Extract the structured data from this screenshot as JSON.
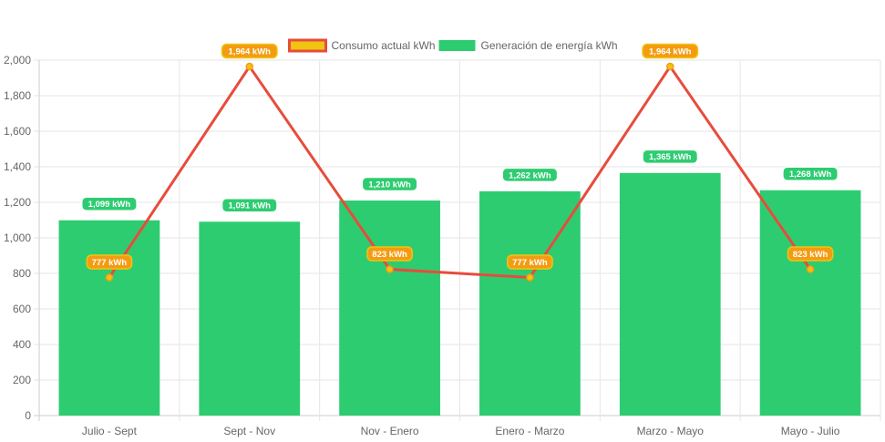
{
  "chart_data": {
    "type": "bar",
    "categories": [
      "Julio - Sept",
      "Sept - Nov",
      "Nov - Enero",
      "Enero - Marzo",
      "Marzo - Mayo",
      "Mayo - Julio"
    ],
    "series": [
      {
        "name": "Consumo actual kWh",
        "type": "line",
        "values": [
          777,
          1964,
          823,
          777,
          1964,
          823
        ],
        "labels": [
          "777 kWh",
          "1,964 kWh",
          "823 kWh",
          "777 kWh",
          "1,964 kWh",
          "823 kWh"
        ],
        "color": "#e74c3c",
        "fill": "#f1c40f",
        "label_bg": "#f39c12"
      },
      {
        "name": "Generación de energía kWh",
        "type": "bar",
        "values": [
          1099,
          1091,
          1210,
          1262,
          1365,
          1268
        ],
        "labels": [
          "1,099 kWh",
          "1,091 kWh",
          "1,210 kWh",
          "1,262 kWh",
          "1,365 kWh",
          "1,268 kWh"
        ],
        "color": "#2ecc71"
      }
    ],
    "yticks": [
      "0",
      "200",
      "400",
      "600",
      "800",
      "1,000",
      "1,200",
      "1,400",
      "1,600",
      "1,800",
      "2,000"
    ],
    "ylim": [
      0,
      2000
    ],
    "grid": true,
    "legend_position": "top"
  }
}
